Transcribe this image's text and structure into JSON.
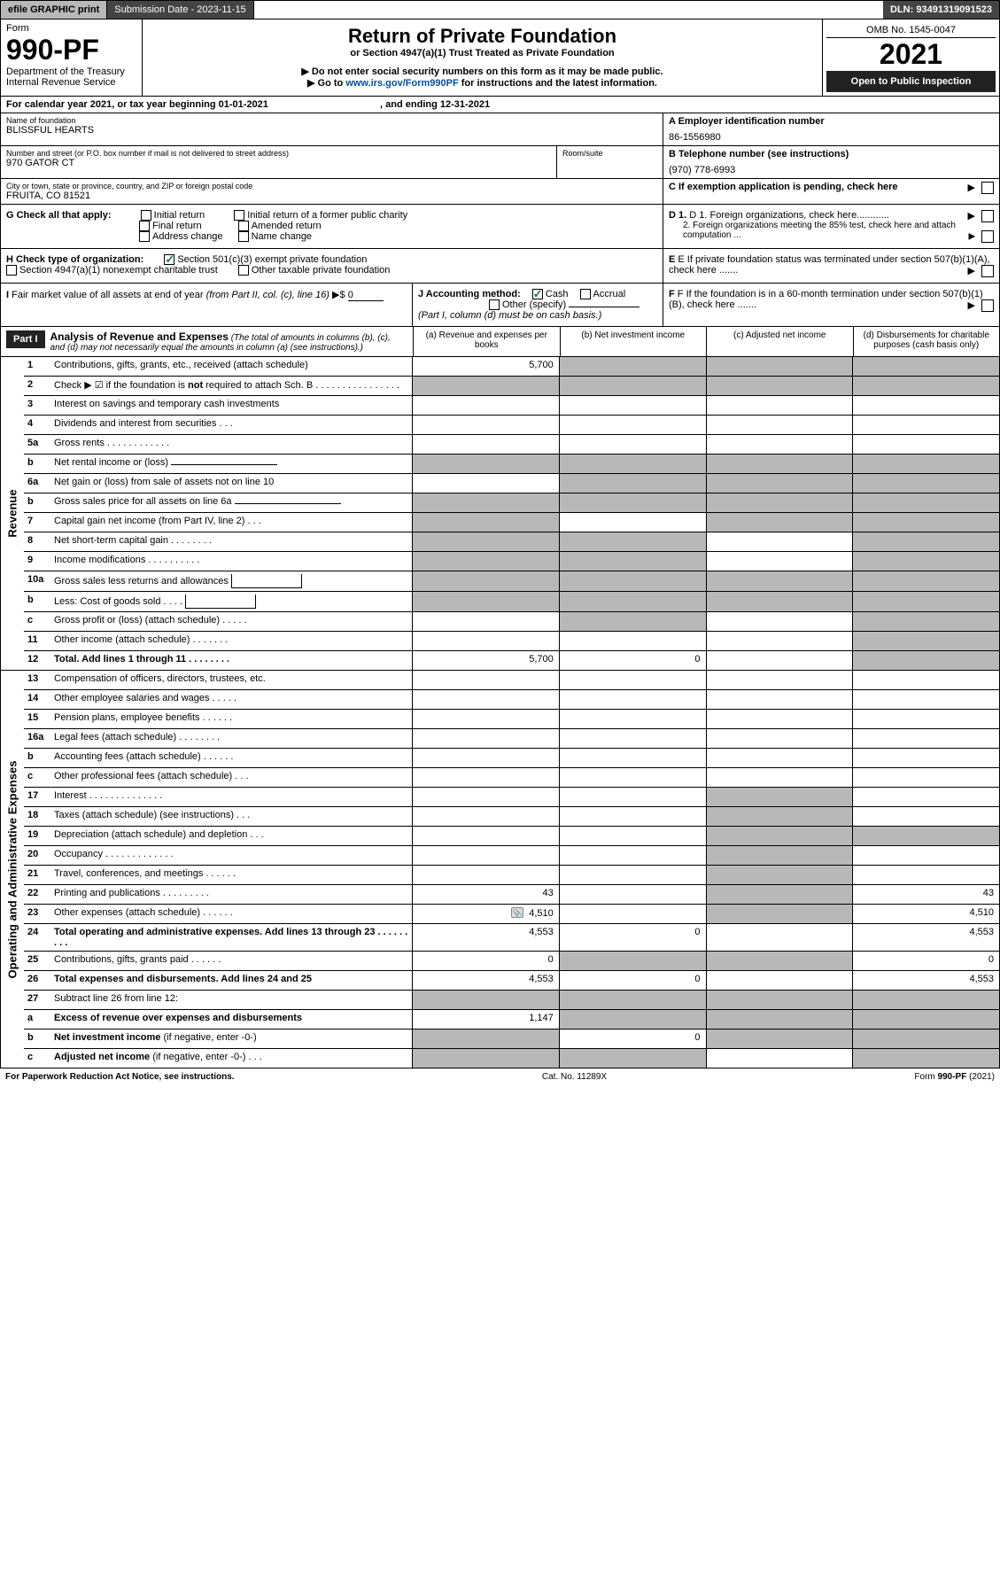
{
  "topbar": {
    "efile": "efile GRAPHIC print",
    "submission": "Submission Date - 2023-11-15",
    "dln": "DLN: 93491319091523"
  },
  "hdr": {
    "form_label": "Form",
    "form_num": "990-PF",
    "dept": "Department of the Treasury",
    "irs": "Internal Revenue Service",
    "title": "Return of Private Foundation",
    "subtitle": "or Section 4947(a)(1) Trust Treated as Private Foundation",
    "note1": "▶ Do not enter social security numbers on this form as it may be made public.",
    "note2_pre": "▶ Go to ",
    "note2_link": "www.irs.gov/Form990PF",
    "note2_post": " for instructions and the latest information.",
    "omb": "OMB No. 1545-0047",
    "year": "2021",
    "open": "Open to Public Inspection"
  },
  "cal": {
    "text": "For calendar year 2021, or tax year beginning 01-01-2021",
    "end": ", and ending 12-31-2021"
  },
  "name": {
    "lbl": "Name of foundation",
    "val": "BLISSFUL HEARTS",
    "ein_lbl": "A Employer identification number",
    "ein": "86-1556980"
  },
  "addr": {
    "lbl": "Number and street (or P.O. box number if mail is not delivered to street address)",
    "val": "970 GATOR CT",
    "room_lbl": "Room/suite",
    "tel_lbl": "B Telephone number (see instructions)",
    "tel": "(970) 778-6993"
  },
  "city": {
    "lbl": "City or town, state or province, country, and ZIP or foreign postal code",
    "val": "FRUITA, CO  81521",
    "c_lbl": "C If exemption application is pending, check here"
  },
  "g": {
    "lbl": "G Check all that apply:",
    "opts": [
      "Initial return",
      "Initial return of a former public charity",
      "Final return",
      "Amended return",
      "Address change",
      "Name change"
    ],
    "d1": "D 1. Foreign organizations, check here............",
    "d2": "2. Foreign organizations meeting the 85% test, check here and attach computation ...",
    "e": "E If private foundation status was terminated under section 507(b)(1)(A), check here ......."
  },
  "h": {
    "lbl": "H Check type of organization:",
    "o1": "Section 501(c)(3) exempt private foundation",
    "o2": "Section 4947(a)(1) nonexempt charitable trust",
    "o3": "Other taxable private foundation"
  },
  "i": {
    "lbl": "I Fair market value of all assets at end of year (from Part II, col. (c), line 16) ▶$ ",
    "val": "0",
    "j_lbl": "J Accounting method:",
    "cash": "Cash",
    "acc": "Accrual",
    "other": "Other (specify)",
    "note": "(Part I, column (d) must be on cash basis.)",
    "f": "F If the foundation is in a 60-month termination under section 507(b)(1)(B), check here ......."
  },
  "part1": {
    "label": "Part I",
    "title": "Analysis of Revenue and Expenses",
    "note": "(The total of amounts in columns (b), (c), and (d) may not necessarily equal the amounts in column (a) (see instructions).)",
    "cols": {
      "a": "(a) Revenue and expenses per books",
      "b": "(b) Net investment income",
      "c": "(c) Adjusted net income",
      "d": "(d) Disbursements for charitable purposes (cash basis only)"
    },
    "side_rev": "Revenue",
    "side_exp": "Operating and Administrative Expenses"
  },
  "rows": [
    {
      "n": "1",
      "d": "Contributions, gifts, grants, etc., received (attach schedule)",
      "a": "5,700",
      "sb": true,
      "sc": true,
      "sd": true
    },
    {
      "n": "2",
      "d": "Check ▶ ☑ if the foundation is <b>not</b> required to attach Sch. B   .  .  .  .  .  .  .  .  .  .  .  .  .  .  .  .",
      "sa": true,
      "sb": true,
      "sc": true,
      "sd": true
    },
    {
      "n": "3",
      "d": "Interest on savings and temporary cash investments"
    },
    {
      "n": "4",
      "d": "Dividends and interest from securities    .   .   ."
    },
    {
      "n": "5a",
      "d": "Gross rents    .   .   .   .   .   .   .   .   .   .   .   ."
    },
    {
      "n": "b",
      "d": "Net rental income or (loss)",
      "sub": true,
      "sa": true,
      "sb": true,
      "sc": true,
      "sd": true
    },
    {
      "n": "6a",
      "d": "Net gain or (loss) from sale of assets not on line 10",
      "sb": true,
      "sc": true,
      "sd": true
    },
    {
      "n": "b",
      "d": "Gross sales price for all assets on line 6a",
      "sub": true,
      "sa": true,
      "sb": true,
      "sc": true,
      "sd": true
    },
    {
      "n": "7",
      "d": "Capital gain net income (from Part IV, line 2)   .   .   .",
      "sa": true,
      "sc": true,
      "sd": true
    },
    {
      "n": "8",
      "d": "Net short-term capital gain  .   .   .   .   .   .   .   .",
      "sa": true,
      "sb": true,
      "sd": true
    },
    {
      "n": "9",
      "d": "Income modifications  .   .   .   .   .   .   .   .   .   .",
      "sa": true,
      "sb": true,
      "sd": true
    },
    {
      "n": "10a",
      "d": "Gross sales less returns and allowances",
      "subr": true,
      "sa": true,
      "sb": true,
      "sc": true,
      "sd": true
    },
    {
      "n": "b",
      "d": "Less: Cost of goods sold   .   .   .   .",
      "subr": true,
      "sa": true,
      "sb": true,
      "sc": true,
      "sd": true
    },
    {
      "n": "c",
      "d": "Gross profit or (loss) (attach schedule)    .   .   .   .   .",
      "sb": true,
      "sd": true
    },
    {
      "n": "11",
      "d": "Other income (attach schedule)   .   .   .   .   .   .   .",
      "sd": true
    },
    {
      "n": "12",
      "d": "<b>Total.</b> Add lines 1 through 11   .   .   .   .   .   .   .   .",
      "a": "5,700",
      "b": "0",
      "sd": true,
      "tot": true
    }
  ],
  "exprows": [
    {
      "n": "13",
      "d": "Compensation of officers, directors, trustees, etc."
    },
    {
      "n": "14",
      "d": "Other employee salaries and wages   .   .   .   .   ."
    },
    {
      "n": "15",
      "d": "Pension plans, employee benefits   .   .   .   .   .   ."
    },
    {
      "n": "16a",
      "d": "Legal fees (attach schedule)  .   .   .   .   .   .   .   ."
    },
    {
      "n": "b",
      "d": "Accounting fees (attach schedule)  .   .   .   .   .   ."
    },
    {
      "n": "c",
      "d": "Other professional fees (attach schedule)    .   .   ."
    },
    {
      "n": "17",
      "d": "Interest  .   .   .   .   .   .   .   .   .   .   .   .   .   .",
      "sc": true
    },
    {
      "n": "18",
      "d": "Taxes (attach schedule) (see instructions)    .   .   .",
      "sc": true
    },
    {
      "n": "19",
      "d": "Depreciation (attach schedule) and depletion    .   .   .",
      "sc": true,
      "sd": true
    },
    {
      "n": "20",
      "d": "Occupancy  .   .   .   .   .   .   .   .   .   .   .   .   .",
      "sc": true
    },
    {
      "n": "21",
      "d": "Travel, conferences, and meetings  .   .   .   .   .   .",
      "sc": true
    },
    {
      "n": "22",
      "d": "Printing and publications  .   .   .   .   .   .   .   .   .",
      "a": "43",
      "d_v": "43",
      "sc": true
    },
    {
      "n": "23",
      "d": "Other expenses (attach schedule)  .   .   .   .   .   .",
      "a": "4,510",
      "d_v": "4,510",
      "sc": true,
      "icon": true
    },
    {
      "n": "24",
      "d": "<b>Total operating and administrative expenses.</b> Add lines 13 through 23   .   .   .   .   .   .   .   .   .",
      "a": "4,553",
      "b": "0",
      "d_v": "4,553",
      "tot": true
    },
    {
      "n": "25",
      "d": "Contributions, gifts, grants paid    .   .   .   .   .   .",
      "a": "0",
      "d_v": "0",
      "sb": true,
      "sc": true
    },
    {
      "n": "26",
      "d": "<b>Total expenses and disbursements.</b> Add lines 24 and 25",
      "a": "4,553",
      "b": "0",
      "d_v": "4,553",
      "tot": true
    },
    {
      "n": "27",
      "d": "Subtract line 26 from line 12:",
      "sa": true,
      "sb": true,
      "sc": true,
      "sd": true
    },
    {
      "n": "a",
      "d": "<b>Excess of revenue over expenses and disbursements</b>",
      "a": "1,147",
      "sb": true,
      "sc": true,
      "sd": true
    },
    {
      "n": "b",
      "d": "<b>Net investment income</b> (if negative, enter -0-)",
      "b": "0",
      "sa": true,
      "sc": true,
      "sd": true
    },
    {
      "n": "c",
      "d": "<b>Adjusted net income</b> (if negative, enter -0-)   .   .   .",
      "sa": true,
      "sb": true,
      "sd": true
    }
  ],
  "footer": {
    "l": "For Paperwork Reduction Act Notice, see instructions.",
    "m": "Cat. No. 11289X",
    "r": "Form 990-PF (2021)"
  }
}
